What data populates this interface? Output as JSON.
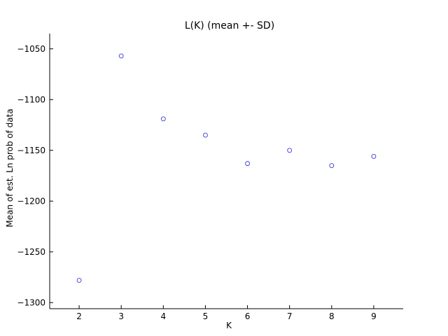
{
  "chart_data": {
    "type": "scatter",
    "title": "L(K) (mean +- SD)",
    "xlabel": "K",
    "ylabel": "Mean of est. Ln prob of data",
    "xlim": [
      1.3,
      9.7
    ],
    "ylim": [
      -1306,
      -1035
    ],
    "xticks": [
      2,
      3,
      4,
      5,
      6,
      7,
      8,
      9
    ],
    "yticks": [
      -1300,
      -1250,
      -1200,
      -1150,
      -1100,
      -1050
    ],
    "ytick_labels": [
      "−1300",
      "−1250",
      "−1200",
      "−1150",
      "−1100",
      "−1050"
    ],
    "grid": false,
    "marker_color": "#3b3bd6",
    "series": [
      {
        "x": [
          2,
          3,
          4,
          5,
          6,
          7,
          8,
          9
        ],
        "values": [
          -1278,
          -1057,
          -1119,
          -1135,
          -1163,
          -1150,
          -1165,
          -1156
        ]
      }
    ]
  }
}
